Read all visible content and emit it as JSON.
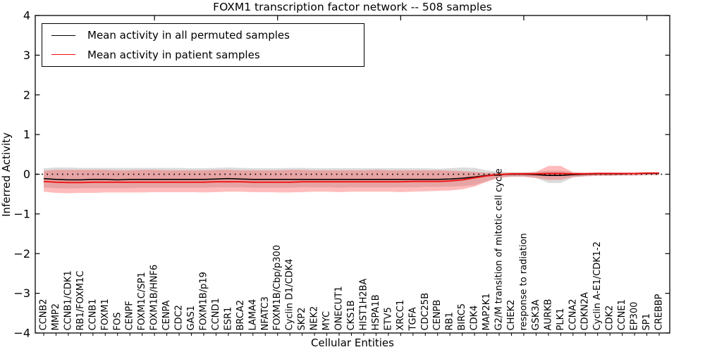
{
  "title": "FOXM1 transcription factor network -- 508 samples",
  "axes": {
    "x_label": "Cellular Entities",
    "y_label": "Inferred Activity",
    "y_ticks": [
      -4,
      -3,
      -2,
      -1,
      0,
      1,
      2,
      3,
      4
    ],
    "y_range": [
      -4,
      4
    ]
  },
  "legend": {
    "entries": [
      {
        "label": "Mean activity in all permuted samples",
        "color": "#000000",
        "width": 1.6
      },
      {
        "label": "Mean activity in patient samples",
        "color": "#ee1111",
        "width": 1.9
      }
    ]
  },
  "colors": {
    "permuted_line": "#000000",
    "patient_line": "#ee1111",
    "permuted_band": "#999999",
    "patient_band": "#ff3333",
    "zero_line": "#000000",
    "frame": "#000000"
  },
  "chart_data": {
    "type": "line",
    "title": "FOXM1 transcription factor network -- 508 samples",
    "xlabel": "Cellular Entities",
    "ylabel": "Inferred Activity",
    "ylim": [
      -4,
      4
    ],
    "grid": false,
    "legend_position": "upper left",
    "reference_line": {
      "y": 0,
      "style": "dotted",
      "color": "#000000"
    },
    "x_major_tick_positions": [
      10,
      20,
      30,
      40,
      50
    ],
    "categories": [
      "CCNB2",
      "MMP2",
      "CCNB1/CDK1",
      "RB1/FOXM1C",
      "CCNB1",
      "FOXM1",
      "FOS",
      "CENPF",
      "FOXM1C/SP1",
      "FOXM1B/HNF6",
      "CENPA",
      "CDC2",
      "GAS1",
      "FOXM1B/p19",
      "CCND1",
      "ESR1",
      "BRCA2",
      "LAMA4",
      "NFATC3",
      "FOXM1B/Cbp/p300",
      "Cyclin D1/CDK4",
      "SKP2",
      "NEK2",
      "MYC",
      "ONECUT1",
      "CKS1B",
      "HIST1H2BA",
      "HSPA1B",
      "ETV5",
      "XRCC1",
      "TGFA",
      "CDC25B",
      "CENPB",
      "RB1",
      "BIRC5",
      "CDK4",
      "MAP2K1",
      "G2/M transition of mitotic cell cycle",
      "CHEK2",
      "response to radiation",
      "GSK3A",
      "AURKB",
      "PLK1",
      "CCNA2",
      "CDKN2A",
      "Cyclin A-E1/CDK1-2",
      "CDK2",
      "CCNE1",
      "EP300",
      "SP1",
      "CREBBP"
    ],
    "series": [
      {
        "name": "Mean activity in all permuted samples",
        "color": "#000000",
        "values": [
          -0.11,
          -0.13,
          -0.14,
          -0.14,
          -0.13,
          -0.13,
          -0.14,
          -0.13,
          -0.13,
          -0.13,
          -0.13,
          -0.13,
          -0.13,
          -0.13,
          -0.12,
          -0.11,
          -0.12,
          -0.13,
          -0.13,
          -0.13,
          -0.13,
          -0.13,
          -0.13,
          -0.13,
          -0.13,
          -0.13,
          -0.13,
          -0.13,
          -0.13,
          -0.13,
          -0.13,
          -0.13,
          -0.13,
          -0.12,
          -0.1,
          -0.07,
          -0.03,
          -0.01,
          0.0,
          0.0,
          -0.01,
          -0.03,
          -0.03,
          -0.01,
          0.0,
          0.01,
          0.01,
          0.01,
          0.02,
          0.02,
          0.02
        ]
      },
      {
        "name": "Mean activity in patient samples",
        "color": "#ee1111",
        "values": [
          -0.18,
          -0.2,
          -0.21,
          -0.21,
          -0.2,
          -0.2,
          -0.2,
          -0.2,
          -0.2,
          -0.2,
          -0.2,
          -0.2,
          -0.2,
          -0.2,
          -0.19,
          -0.19,
          -0.19,
          -0.2,
          -0.2,
          -0.2,
          -0.2,
          -0.19,
          -0.19,
          -0.19,
          -0.19,
          -0.19,
          -0.19,
          -0.19,
          -0.19,
          -0.19,
          -0.18,
          -0.18,
          -0.18,
          -0.17,
          -0.14,
          -0.09,
          -0.04,
          -0.01,
          0.01,
          0.01,
          0.01,
          0.02,
          0.02,
          0.01,
          0.01,
          0.02,
          0.02,
          0.02,
          0.02,
          0.03,
          0.03
        ]
      }
    ],
    "bands": [
      {
        "name": "permuted samples range",
        "color": "#999999",
        "opacity": 0.35,
        "upper": [
          0.15,
          0.17,
          0.17,
          0.16,
          0.16,
          0.16,
          0.16,
          0.16,
          0.16,
          0.16,
          0.16,
          0.16,
          0.15,
          0.15,
          0.16,
          0.17,
          0.16,
          0.15,
          0.15,
          0.15,
          0.16,
          0.16,
          0.15,
          0.15,
          0.15,
          0.15,
          0.15,
          0.15,
          0.15,
          0.15,
          0.15,
          0.15,
          0.14,
          0.15,
          0.17,
          0.16,
          0.1,
          0.06,
          0.05,
          0.05,
          0.06,
          0.09,
          0.09,
          0.05,
          0.04,
          0.04,
          0.03,
          0.03,
          0.03,
          0.02,
          0.02
        ],
        "lower": [
          -0.33,
          -0.35,
          -0.36,
          -0.35,
          -0.35,
          -0.35,
          -0.35,
          -0.35,
          -0.34,
          -0.34,
          -0.34,
          -0.34,
          -0.34,
          -0.34,
          -0.33,
          -0.33,
          -0.33,
          -0.34,
          -0.34,
          -0.34,
          -0.34,
          -0.33,
          -0.33,
          -0.33,
          -0.34,
          -0.33,
          -0.33,
          -0.33,
          -0.33,
          -0.33,
          -0.33,
          -0.32,
          -0.32,
          -0.31,
          -0.3,
          -0.27,
          -0.17,
          -0.08,
          -0.06,
          -0.06,
          -0.1,
          -0.22,
          -0.22,
          -0.08,
          -0.05,
          -0.04,
          -0.04,
          -0.03,
          -0.03,
          -0.02,
          -0.02
        ]
      },
      {
        "name": "patient samples range",
        "color": "#ff3333",
        "opacity": 0.33,
        "upper": [
          0.09,
          0.11,
          0.11,
          0.11,
          0.11,
          0.11,
          0.1,
          0.1,
          0.11,
          0.11,
          0.1,
          0.1,
          0.1,
          0.1,
          0.11,
          0.11,
          0.1,
          0.1,
          0.1,
          0.1,
          0.11,
          0.11,
          0.1,
          0.1,
          0.1,
          0.1,
          0.1,
          0.11,
          0.1,
          0.1,
          0.1,
          0.1,
          0.1,
          0.09,
          0.08,
          0.06,
          0.04,
          0.03,
          0.04,
          0.04,
          0.06,
          0.21,
          0.21,
          0.05,
          0.04,
          0.04,
          0.04,
          0.03,
          0.03,
          0.03,
          0.03
        ],
        "lower": [
          -0.44,
          -0.47,
          -0.48,
          -0.47,
          -0.47,
          -0.46,
          -0.46,
          -0.46,
          -0.46,
          -0.45,
          -0.45,
          -0.45,
          -0.45,
          -0.46,
          -0.45,
          -0.44,
          -0.44,
          -0.45,
          -0.45,
          -0.46,
          -0.46,
          -0.45,
          -0.44,
          -0.44,
          -0.45,
          -0.44,
          -0.44,
          -0.44,
          -0.44,
          -0.45,
          -0.44,
          -0.43,
          -0.42,
          -0.41,
          -0.38,
          -0.31,
          -0.19,
          -0.09,
          -0.06,
          -0.06,
          -0.09,
          -0.14,
          -0.14,
          -0.07,
          -0.05,
          -0.04,
          -0.04,
          -0.03,
          -0.03,
          -0.02,
          -0.02
        ]
      }
    ]
  }
}
